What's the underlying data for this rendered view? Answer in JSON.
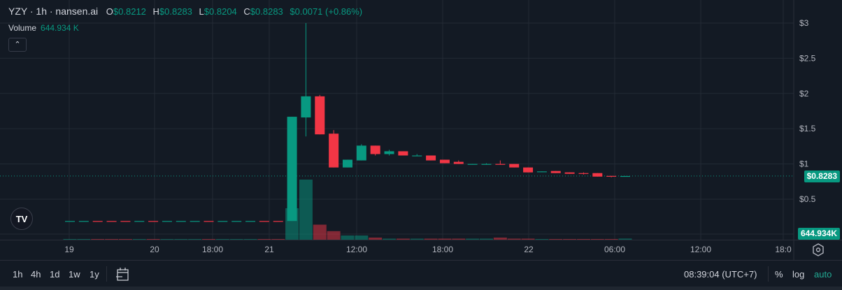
{
  "header": {
    "symbol": "YZY · 1h · nansen.ai",
    "open_label": "O",
    "open": "$0.8212",
    "high_label": "H",
    "high": "$0.8283",
    "low_label": "L",
    "low": "$0.8204",
    "close_label": "C",
    "close": "$0.8283",
    "change": "$0.0071 (+0.86%)"
  },
  "volume": {
    "label": "Volume",
    "value": "644.934 K",
    "tag": "644.934K"
  },
  "collapse_icon": "chevron-up-icon",
  "logo": "TV",
  "price_tag": "$0.8283",
  "colors": {
    "background": "#131a24",
    "up": "#089981",
    "down": "#f23645",
    "grid": "#232a35"
  },
  "chart_data": {
    "type": "candlestick",
    "price_axis": {
      "ticks": [
        "$3",
        "$2.5",
        "$2",
        "$1.5",
        "$1",
        "$0.5"
      ],
      "values": [
        3,
        2.5,
        2,
        1.5,
        1,
        0.5
      ]
    },
    "time_axis": {
      "ticks": [
        "19",
        "20",
        "18:00",
        "21",
        "12:00",
        "18:00",
        "22",
        "06:00",
        "12:00",
        "18:0"
      ]
    },
    "last_price": 0.8283,
    "candles": [
      [
        0.19,
        0.19,
        0.19,
        0.19
      ],
      [
        0.19,
        0.19,
        0.19,
        0.19
      ],
      [
        0.19,
        0.19,
        0.19,
        0.189
      ],
      [
        0.19,
        0.19,
        0.19,
        0.189
      ],
      [
        0.19,
        0.19,
        0.19,
        0.189
      ],
      [
        0.19,
        0.19,
        0.19,
        0.19
      ],
      [
        0.19,
        0.19,
        0.19,
        0.189
      ],
      [
        0.19,
        0.19,
        0.19,
        0.19
      ],
      [
        0.19,
        0.19,
        0.19,
        0.19
      ],
      [
        0.19,
        0.19,
        0.19,
        0.19
      ],
      [
        0.19,
        0.19,
        0.19,
        0.189
      ],
      [
        0.19,
        0.19,
        0.19,
        0.19
      ],
      [
        0.19,
        0.19,
        0.19,
        0.19
      ],
      [
        0.19,
        0.19,
        0.19,
        0.19
      ],
      [
        0.19,
        0.19,
        0.19,
        0.189
      ],
      [
        0.19,
        0.19,
        0.19,
        0.189
      ],
      [
        0.19,
        1.67,
        0.19,
        1.67
      ],
      [
        1.66,
        3.0,
        1.39,
        1.96
      ],
      [
        1.96,
        1.98,
        1.42,
        1.42
      ],
      [
        1.43,
        1.48,
        0.95,
        0.95
      ],
      [
        0.95,
        1.06,
        0.95,
        1.06
      ],
      [
        1.05,
        1.28,
        1.05,
        1.26
      ],
      [
        1.26,
        1.26,
        1.12,
        1.14
      ],
      [
        1.14,
        1.2,
        1.12,
        1.18
      ],
      [
        1.18,
        1.18,
        1.12,
        1.12
      ],
      [
        1.11,
        1.14,
        1.11,
        1.12
      ],
      [
        1.12,
        1.12,
        1.05,
        1.05
      ],
      [
        1.06,
        1.06,
        1.01,
        1.01
      ],
      [
        1.03,
        1.05,
        1.0,
        1.0
      ],
      [
        0.995,
        1.0,
        0.99,
        1.0
      ],
      [
        0.995,
        1.01,
        0.99,
        1.0
      ],
      [
        1.0,
        1.05,
        0.99,
        0.995
      ],
      [
        1.0,
        1.0,
        0.95,
        0.95
      ],
      [
        0.95,
        0.95,
        0.88,
        0.88
      ],
      [
        0.89,
        0.895,
        0.89,
        0.894
      ],
      [
        0.9,
        0.9,
        0.87,
        0.87
      ],
      [
        0.88,
        0.88,
        0.86,
        0.86
      ],
      [
        0.87,
        0.88,
        0.85,
        0.86
      ],
      [
        0.87,
        0.87,
        0.82,
        0.82
      ],
      [
        0.83,
        0.83,
        0.81,
        0.82
      ],
      [
        0.8212,
        0.8283,
        0.8204,
        0.8283
      ]
    ],
    "volume_k": [
      300,
      300,
      300,
      300,
      300,
      300,
      300,
      300,
      300,
      300,
      300,
      300,
      300,
      300,
      300,
      300,
      18000,
      34400,
      8600,
      4900,
      2400,
      2400,
      1200,
      600,
      600,
      600,
      600,
      600,
      600,
      600,
      600,
      1200,
      600,
      600,
      400,
      400,
      400,
      400,
      400,
      400,
      644.934
    ]
  },
  "footer": {
    "timeframes": [
      "1h",
      "4h",
      "1d",
      "1w",
      "1y"
    ],
    "goto_icon": "calendar-goto-icon",
    "clock": "08:39:04 (UTC+7)",
    "percent": "%",
    "log": "log",
    "auto": "auto",
    "settings_icon": "gear-icon"
  }
}
